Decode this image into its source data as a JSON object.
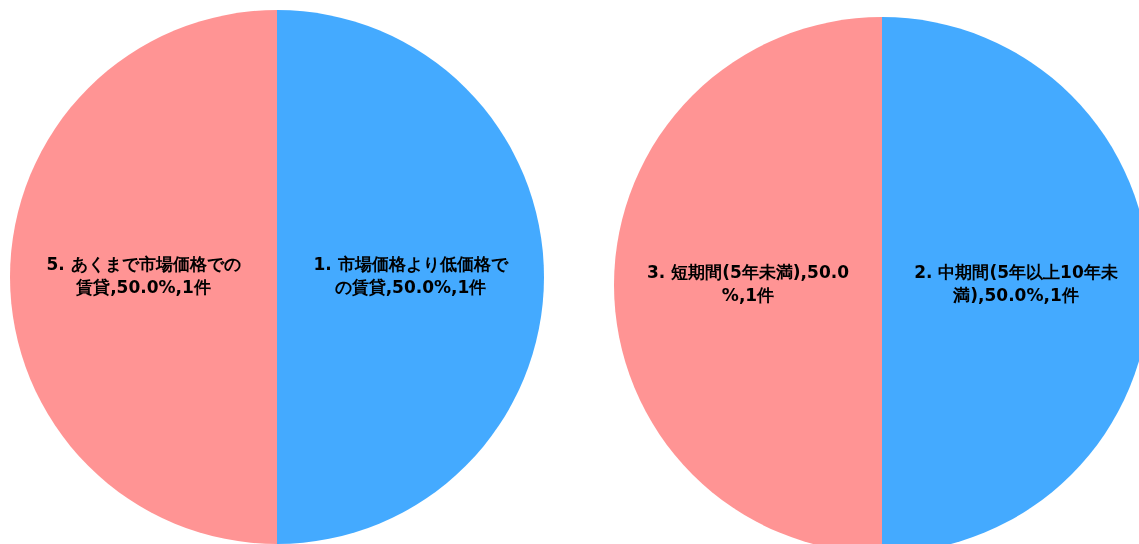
{
  "chart_data": [
    {
      "type": "pie",
      "categories": [
        "1. 市場価格より低価格での賃貸",
        "5. あくまで市場価格での賃貸"
      ],
      "values": [
        1,
        1
      ],
      "colors": [
        "#44aaff",
        "#ff9494"
      ],
      "value_labels": [
        "50.0%,1件",
        "50.0%,1件"
      ]
    },
    {
      "type": "pie",
      "categories": [
        "2. 中期間(5年以上10年未満)",
        "3. 短期間(5年未満)"
      ],
      "values": [
        1,
        1
      ],
      "colors": [
        "#44aaff",
        "#ff9494"
      ],
      "value_labels": [
        "50.0%,1件",
        "50.0%,1件"
      ]
    }
  ]
}
